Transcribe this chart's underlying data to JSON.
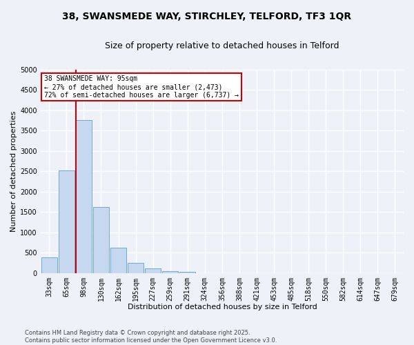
{
  "title_line1": "38, SWANSMEDE WAY, STIRCHLEY, TELFORD, TF3 1QR",
  "title_line2": "Size of property relative to detached houses in Telford",
  "xlabel": "Distribution of detached houses by size in Telford",
  "ylabel": "Number of detached properties",
  "categories": [
    "33sqm",
    "65sqm",
    "98sqm",
    "130sqm",
    "162sqm",
    "195sqm",
    "227sqm",
    "259sqm",
    "291sqm",
    "324sqm",
    "356sqm",
    "388sqm",
    "421sqm",
    "453sqm",
    "485sqm",
    "518sqm",
    "550sqm",
    "582sqm",
    "614sqm",
    "647sqm",
    "679sqm"
  ],
  "values": [
    380,
    2520,
    3750,
    1620,
    630,
    245,
    120,
    50,
    30,
    0,
    0,
    0,
    0,
    0,
    0,
    0,
    0,
    0,
    0,
    0,
    0
  ],
  "bar_color": "#c5d8f0",
  "bar_edgecolor": "#6fa8d6",
  "vline_color": "#cc0000",
  "annotation_text": "38 SWANSMEDE WAY: 95sqm\n← 27% of detached houses are smaller (2,473)\n72% of semi-detached houses are larger (6,737) →",
  "annotation_box_facecolor": "#ffffff",
  "annotation_box_edgecolor": "#cc0000",
  "ylim": [
    0,
    5000
  ],
  "yticks": [
    0,
    500,
    1000,
    1500,
    2000,
    2500,
    3000,
    3500,
    4000,
    4500,
    5000
  ],
  "footer": "Contains HM Land Registry data © Crown copyright and database right 2025.\nContains public sector information licensed under the Open Government Licence v3.0.",
  "bg_color": "#eef2f8",
  "grid_color": "#ffffff",
  "title_fontsize": 10,
  "subtitle_fontsize": 9,
  "axis_label_fontsize": 8,
  "tick_fontsize": 7,
  "annotation_fontsize": 7,
  "footer_fontsize": 6
}
